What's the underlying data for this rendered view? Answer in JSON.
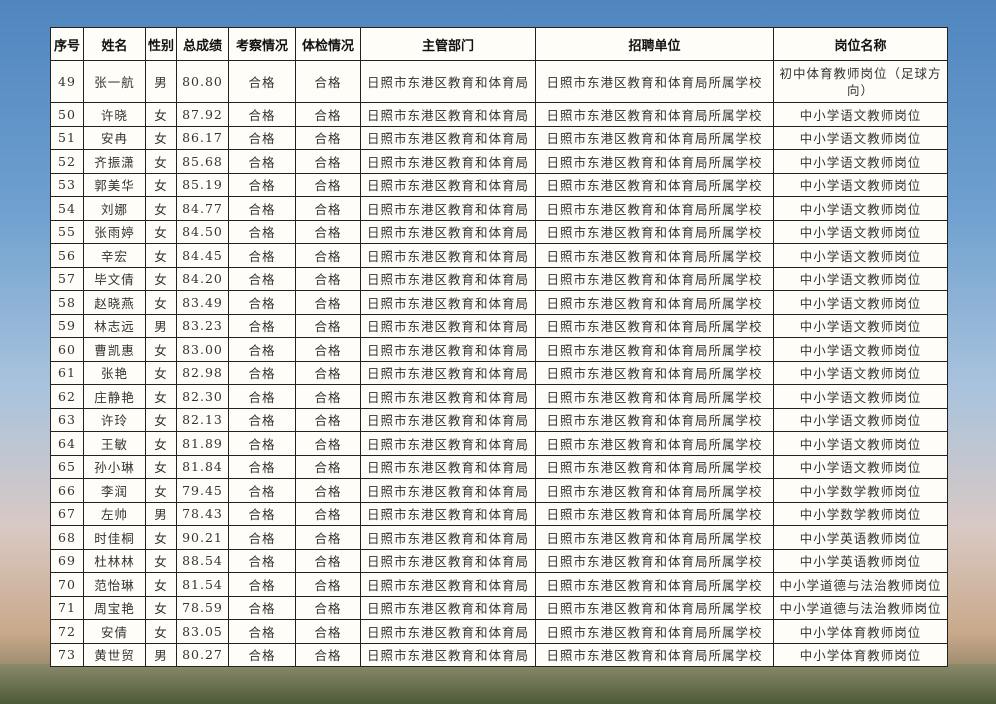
{
  "headers": [
    "序号",
    "姓名",
    "性别",
    "总成绩",
    "考察情况",
    "体检情况",
    "主管部门",
    "招聘单位",
    "岗位名称"
  ],
  "rows": [
    [
      "49",
      "张一航",
      "男",
      "80.80",
      "合格",
      "合格",
      "日照市东港区教育和体育局",
      "日照市东港区教育和体育局所属学校",
      "初中体育教师岗位（足球方向）"
    ],
    [
      "50",
      "许晓",
      "女",
      "87.92",
      "合格",
      "合格",
      "日照市东港区教育和体育局",
      "日照市东港区教育和体育局所属学校",
      "中小学语文教师岗位"
    ],
    [
      "51",
      "安冉",
      "女",
      "86.17",
      "合格",
      "合格",
      "日照市东港区教育和体育局",
      "日照市东港区教育和体育局所属学校",
      "中小学语文教师岗位"
    ],
    [
      "52",
      "齐振潇",
      "女",
      "85.68",
      "合格",
      "合格",
      "日照市东港区教育和体育局",
      "日照市东港区教育和体育局所属学校",
      "中小学语文教师岗位"
    ],
    [
      "53",
      "郭美华",
      "女",
      "85.19",
      "合格",
      "合格",
      "日照市东港区教育和体育局",
      "日照市东港区教育和体育局所属学校",
      "中小学语文教师岗位"
    ],
    [
      "54",
      "刘娜",
      "女",
      "84.77",
      "合格",
      "合格",
      "日照市东港区教育和体育局",
      "日照市东港区教育和体育局所属学校",
      "中小学语文教师岗位"
    ],
    [
      "55",
      "张雨婷",
      "女",
      "84.50",
      "合格",
      "合格",
      "日照市东港区教育和体育局",
      "日照市东港区教育和体育局所属学校",
      "中小学语文教师岗位"
    ],
    [
      "56",
      "辛宏",
      "女",
      "84.45",
      "合格",
      "合格",
      "日照市东港区教育和体育局",
      "日照市东港区教育和体育局所属学校",
      "中小学语文教师岗位"
    ],
    [
      "57",
      "毕文倩",
      "女",
      "84.20",
      "合格",
      "合格",
      "日照市东港区教育和体育局",
      "日照市东港区教育和体育局所属学校",
      "中小学语文教师岗位"
    ],
    [
      "58",
      "赵晓燕",
      "女",
      "83.49",
      "合格",
      "合格",
      "日照市东港区教育和体育局",
      "日照市东港区教育和体育局所属学校",
      "中小学语文教师岗位"
    ],
    [
      "59",
      "林志远",
      "男",
      "83.23",
      "合格",
      "合格",
      "日照市东港区教育和体育局",
      "日照市东港区教育和体育局所属学校",
      "中小学语文教师岗位"
    ],
    [
      "60",
      "曹凯惠",
      "女",
      "83.00",
      "合格",
      "合格",
      "日照市东港区教育和体育局",
      "日照市东港区教育和体育局所属学校",
      "中小学语文教师岗位"
    ],
    [
      "61",
      "张艳",
      "女",
      "82.98",
      "合格",
      "合格",
      "日照市东港区教育和体育局",
      "日照市东港区教育和体育局所属学校",
      "中小学语文教师岗位"
    ],
    [
      "62",
      "庄静艳",
      "女",
      "82.30",
      "合格",
      "合格",
      "日照市东港区教育和体育局",
      "日照市东港区教育和体育局所属学校",
      "中小学语文教师岗位"
    ],
    [
      "63",
      "许玲",
      "女",
      "82.13",
      "合格",
      "合格",
      "日照市东港区教育和体育局",
      "日照市东港区教育和体育局所属学校",
      "中小学语文教师岗位"
    ],
    [
      "64",
      "王敏",
      "女",
      "81.89",
      "合格",
      "合格",
      "日照市东港区教育和体育局",
      "日照市东港区教育和体育局所属学校",
      "中小学语文教师岗位"
    ],
    [
      "65",
      "孙小琳",
      "女",
      "81.84",
      "合格",
      "合格",
      "日照市东港区教育和体育局",
      "日照市东港区教育和体育局所属学校",
      "中小学语文教师岗位"
    ],
    [
      "66",
      "李润",
      "女",
      "79.45",
      "合格",
      "合格",
      "日照市东港区教育和体育局",
      "日照市东港区教育和体育局所属学校",
      "中小学数学教师岗位"
    ],
    [
      "67",
      "左帅",
      "男",
      "78.43",
      "合格",
      "合格",
      "日照市东港区教育和体育局",
      "日照市东港区教育和体育局所属学校",
      "中小学数学教师岗位"
    ],
    [
      "68",
      "时佳桐",
      "女",
      "90.21",
      "合格",
      "合格",
      "日照市东港区教育和体育局",
      "日照市东港区教育和体育局所属学校",
      "中小学英语教师岗位"
    ],
    [
      "69",
      "杜林林",
      "女",
      "88.54",
      "合格",
      "合格",
      "日照市东港区教育和体育局",
      "日照市东港区教育和体育局所属学校",
      "中小学英语教师岗位"
    ],
    [
      "70",
      "范怡琳",
      "女",
      "81.54",
      "合格",
      "合格",
      "日照市东港区教育和体育局",
      "日照市东港区教育和体育局所属学校",
      "中小学道德与法治教师岗位"
    ],
    [
      "71",
      "周宝艳",
      "女",
      "78.59",
      "合格",
      "合格",
      "日照市东港区教育和体育局",
      "日照市东港区教育和体育局所属学校",
      "中小学道德与法治教师岗位"
    ],
    [
      "72",
      "安倩",
      "女",
      "83.05",
      "合格",
      "合格",
      "日照市东港区教育和体育局",
      "日照市东港区教育和体育局所属学校",
      "中小学体育教师岗位"
    ],
    [
      "73",
      "黄世贸",
      "男",
      "80.27",
      "合格",
      "合格",
      "日照市东港区教育和体育局",
      "日照市东港区教育和体育局所属学校",
      "中小学体育教师岗位"
    ]
  ]
}
